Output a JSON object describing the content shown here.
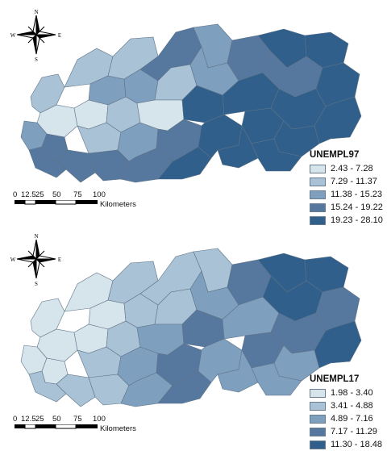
{
  "colors": {
    "class1": "#d6e4ec",
    "class2": "#a9c2d6",
    "class3": "#7f9fbf",
    "class4": "#56789f",
    "class5": "#2f5f8a",
    "border": "#5f7387"
  },
  "compass": {
    "north": "N",
    "south": "S",
    "east": "E",
    "west": "W"
  },
  "maps": [
    {
      "legend_title": "UNEMPL97",
      "classes": [
        "2.43 - 7.28",
        "7.29 - 11.37",
        "11.38 - 15.23",
        "15.24 - 19.22",
        "19.23 - 28.10"
      ]
    },
    {
      "legend_title": "UNEMPL17",
      "classes": [
        "1.98 - 3.40",
        "3.41 - 4.88",
        "4.89 - 7.16",
        "7.17 - 11.29",
        "11.30 - 18.48"
      ]
    }
  ],
  "scale": {
    "ticks": [
      "0",
      "12.5",
      "25",
      "50",
      "75",
      "100"
    ],
    "unit": "Kilometers"
  }
}
